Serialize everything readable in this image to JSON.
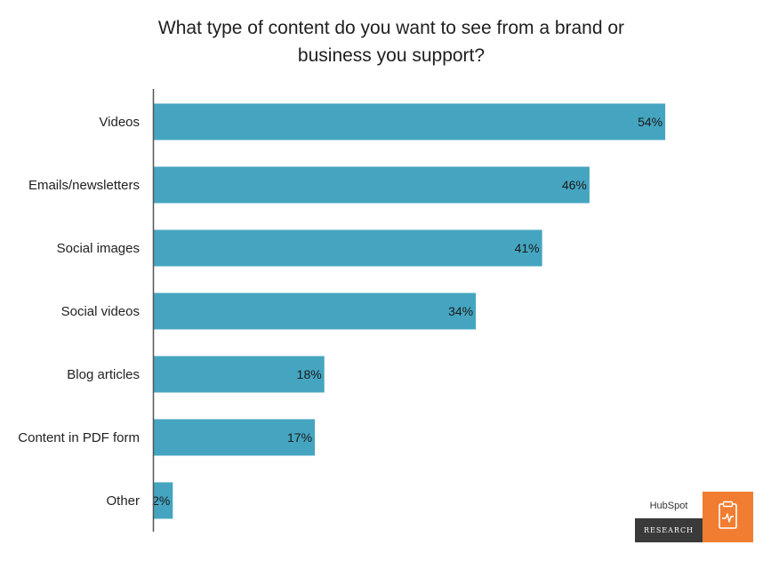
{
  "chart_data": {
    "type": "bar",
    "orientation": "horizontal",
    "title": "What type of content do you want to see from a brand or business you support?",
    "categories": [
      "Videos",
      "Emails/newsletters",
      "Social images",
      "Social videos",
      "Blog articles",
      "Content in PDF form",
      "Other"
    ],
    "values": [
      54,
      46,
      41,
      34,
      18,
      17,
      2
    ],
    "value_labels": [
      "54%",
      "46%",
      "41%",
      "34%",
      "18%",
      "17%",
      "2%"
    ],
    "unit": "%",
    "xlim": [
      0,
      60
    ],
    "bar_color": "#45a5c0",
    "grid": false,
    "legend": "none"
  },
  "badge": {
    "brand": "HubSpot",
    "tag": "RESEARCH",
    "icon": "clipboard-icon",
    "accent_color": "#f07d31",
    "dark_color": "#3a3a3a"
  }
}
